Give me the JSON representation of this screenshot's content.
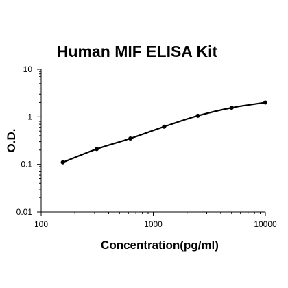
{
  "chart_data": {
    "type": "scatter",
    "title": "Human MIF ELISA Kit",
    "xlabel": "Concentration(pg/ml)",
    "ylabel": "O.D.",
    "xscale": "log",
    "yscale": "log",
    "xlim": [
      100,
      10000
    ],
    "ylim": [
      0.01,
      10
    ],
    "x_ticks": [
      100,
      1000,
      10000
    ],
    "x_tick_labels": [
      "100",
      "1000",
      "10000"
    ],
    "y_ticks": [
      0.01,
      0.1,
      1,
      10
    ],
    "y_tick_labels": [
      "0.01",
      "0.1",
      "1",
      "10"
    ],
    "grid": false,
    "legend": "none",
    "fit_curve": true,
    "series": [
      {
        "x": [
          156,
          313,
          625,
          1250,
          2500,
          5000,
          10000
        ],
        "y": [
          0.11,
          0.21,
          0.35,
          0.62,
          1.05,
          1.55,
          2.0
        ]
      }
    ]
  }
}
